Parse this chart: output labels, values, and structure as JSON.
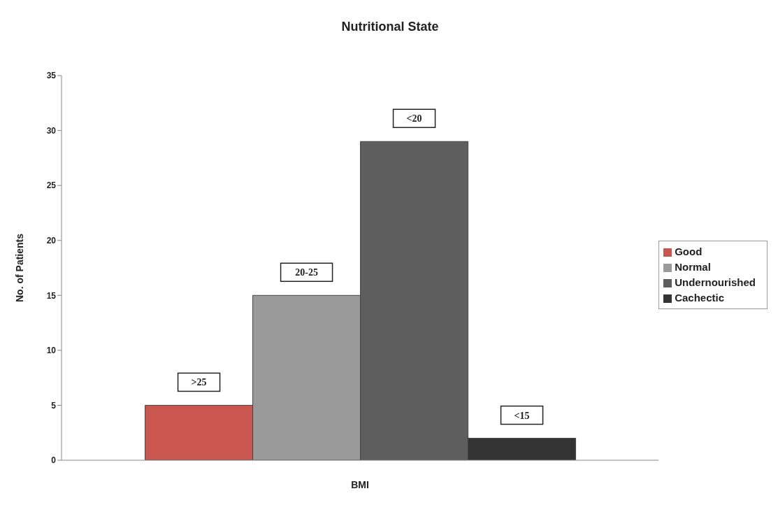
{
  "chart_data": {
    "type": "bar",
    "title": "Nutritional State",
    "xlabel": "BMI",
    "ylabel": "No. of Patients",
    "categories": [
      null
    ],
    "series": [
      {
        "name": "Good",
        "color": "#c9574f",
        "values": [
          5
        ]
      },
      {
        "name": "Normal",
        "color": "#9a9a9a",
        "values": [
          15
        ]
      },
      {
        "name": "Undernourished",
        "color": "#5e5e5e",
        "values": [
          29
        ]
      },
      {
        "name": "Cachectic",
        "color": "#333333",
        "values": [
          2
        ]
      }
    ],
    "annotations": [
      {
        "text": ">25",
        "y": 5
      },
      {
        "text": "20-25",
        "y": 15
      },
      {
        "text": "<20",
        "y": 29
      },
      {
        "text": "<15",
        "y": 2
      }
    ],
    "ylim": [
      0,
      35
    ],
    "yticks": [
      0,
      5,
      10,
      15,
      20,
      25,
      30,
      35
    ],
    "grid": false,
    "legend": "right"
  }
}
